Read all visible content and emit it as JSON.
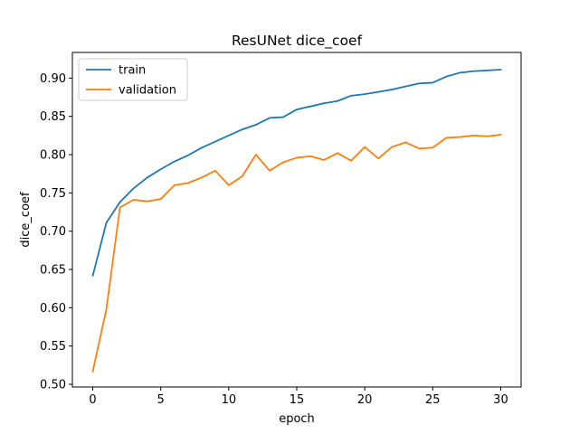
{
  "chart_data": {
    "type": "line",
    "title": "ResUNet dice_coef",
    "xlabel": "epoch",
    "ylabel": "dice_coef",
    "xlim": [
      -1.5,
      31.5
    ],
    "ylim": [
      0.4965,
      0.9335
    ],
    "xticks": [
      0,
      5,
      10,
      15,
      20,
      25,
      30
    ],
    "yticks": [
      0.5,
      0.55,
      0.6,
      0.65,
      0.7,
      0.75,
      0.8,
      0.85,
      0.9
    ],
    "grid": false,
    "legend_position": "upper-left",
    "x": [
      0,
      1,
      2,
      3,
      4,
      5,
      6,
      7,
      8,
      9,
      10,
      11,
      12,
      13,
      14,
      15,
      16,
      17,
      18,
      19,
      20,
      21,
      22,
      23,
      24,
      25,
      26,
      27,
      28,
      29,
      30
    ],
    "series": [
      {
        "name": "train",
        "color": "#1f77b4",
        "values": [
          0.642,
          0.711,
          0.738,
          0.756,
          0.77,
          0.781,
          0.791,
          0.799,
          0.809,
          0.817,
          0.825,
          0.833,
          0.839,
          0.848,
          0.849,
          0.859,
          0.863,
          0.867,
          0.87,
          0.877,
          0.879,
          0.882,
          0.885,
          0.889,
          0.893,
          0.894,
          0.902,
          0.907,
          0.909,
          0.91,
          0.911
        ]
      },
      {
        "name": "validation",
        "color": "#ff7f0e",
        "values": [
          0.517,
          0.598,
          0.731,
          0.741,
          0.739,
          0.742,
          0.76,
          0.763,
          0.77,
          0.779,
          0.76,
          0.772,
          0.8,
          0.779,
          0.79,
          0.796,
          0.798,
          0.793,
          0.802,
          0.792,
          0.81,
          0.795,
          0.81,
          0.816,
          0.808,
          0.809,
          0.822,
          0.823,
          0.825,
          0.824,
          0.826
        ]
      }
    ]
  }
}
